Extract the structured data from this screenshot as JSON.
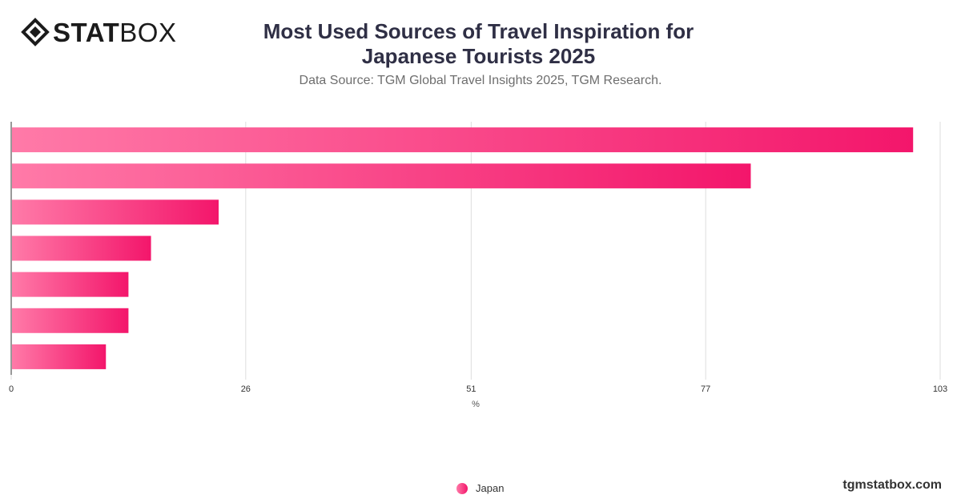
{
  "header": {
    "logo_text_bold": "STAT",
    "logo_text_light": "BOX",
    "title": "Most Used Sources of Travel Inspiration for Japanese Tourists 2025",
    "subtitle": "Data Source: TGM Global Travel Insights 2025, TGM Research."
  },
  "footer": {
    "brand": "tgmstatbox.com"
  },
  "colors": {
    "bar_start": "#ff7aa8",
    "bar_end": "#f3166b",
    "grid": "#dddddd",
    "axis": "#333333"
  },
  "chart_data": {
    "type": "bar",
    "orientation": "horizontal",
    "xlabel": "%",
    "xlim": [
      0,
      103
    ],
    "xticks": [
      "0",
      "26",
      "51",
      "77",
      "103"
    ],
    "categories": [
      "",
      "",
      "",
      "",
      "",
      "",
      ""
    ],
    "series": [
      {
        "name": "Japan",
        "values": [
          100,
          82,
          23,
          15.5,
          13,
          13,
          10.5
        ]
      }
    ],
    "legend_position": "bottom",
    "grid": true
  }
}
